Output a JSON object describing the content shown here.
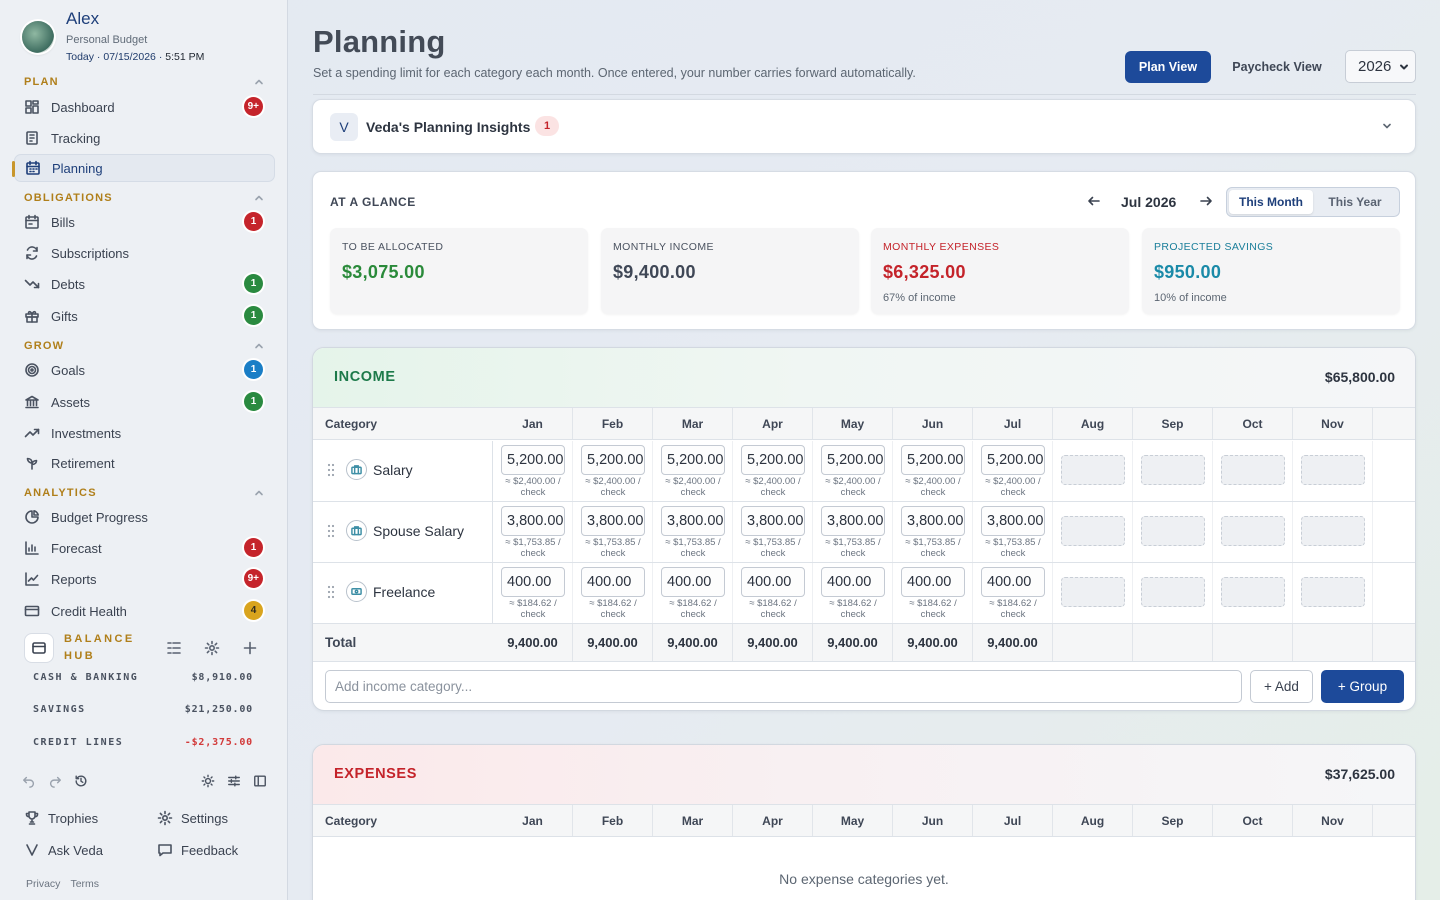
{
  "user": {
    "name": "Alex",
    "subtitle": "Personal Budget",
    "date_prefix": "Today · 07/15/2026 · ",
    "time": "5:51 PM"
  },
  "sidebar": {
    "sections": {
      "plan": "PLAN",
      "obligations": "OBLIGATIONS",
      "grow": "GROW",
      "analytics": "ANALYTICS"
    },
    "items": {
      "dashboard": {
        "label": "Dashboard",
        "badge": "9+"
      },
      "tracking": {
        "label": "Tracking"
      },
      "planning": {
        "label": "Planning"
      },
      "bills": {
        "label": "Bills",
        "badge": "1"
      },
      "subscriptions": {
        "label": "Subscriptions"
      },
      "debts": {
        "label": "Debts",
        "badge": "1"
      },
      "gifts": {
        "label": "Gifts",
        "badge": "1"
      },
      "goals": {
        "label": "Goals",
        "badge": "1"
      },
      "assets": {
        "label": "Assets",
        "badge": "1"
      },
      "investments": {
        "label": "Investments"
      },
      "retirement": {
        "label": "Retirement"
      },
      "budget_progress": {
        "label": "Budget Progress"
      },
      "forecast": {
        "label": "Forecast",
        "badge": "1"
      },
      "reports": {
        "label": "Reports",
        "badge": "9+"
      },
      "credit_health": {
        "label": "Credit Health",
        "badge": "4"
      }
    },
    "balance_hub": {
      "title_line1": "BALANCE",
      "title_line2": "HUB",
      "rows": [
        {
          "label": "CASH & BANKING",
          "value": "$8,910.00"
        },
        {
          "label": "SAVINGS",
          "value": "$21,250.00"
        },
        {
          "label": "CREDIT LINES",
          "value": "-$2,375.00"
        }
      ]
    },
    "footer": {
      "trophies": "Trophies",
      "settings": "Settings",
      "ask_veda": "Ask Veda",
      "feedback": "Feedback",
      "privacy": "Privacy",
      "terms": "Terms"
    }
  },
  "header": {
    "title": "Planning",
    "subtitle": "Set a spending limit for each category each month. Once entered, your number carries forward automatically.",
    "plan_view": "Plan View",
    "paycheck_view": "Paycheck View",
    "year": "2026"
  },
  "insights": {
    "badge": "V",
    "title": "Veda's Planning Insights",
    "count": "1"
  },
  "glance": {
    "title": "AT A GLANCE",
    "month": "Jul 2026",
    "this_month": "This Month",
    "this_year": "This Year",
    "stats": [
      {
        "label": "TO BE ALLOCATED",
        "value": "$3,075.00",
        "sub": ""
      },
      {
        "label": "MONTHLY INCOME",
        "value": "$9,400.00",
        "sub": ""
      },
      {
        "label": "MONTHLY EXPENSES",
        "value": "$6,325.00",
        "sub": "67% of income"
      },
      {
        "label": "PROJECTED SAVINGS",
        "value": "$950.00",
        "sub": "10% of income"
      }
    ],
    "colors": {
      "allocated": "#2a8a3a",
      "income": "#3f4756",
      "expenses": "#c4232a",
      "savings": "#1a8aa8"
    }
  },
  "months": [
    "Jan",
    "Feb",
    "Mar",
    "Apr",
    "May",
    "Jun",
    "Jul",
    "Aug",
    "Sep",
    "Oct",
    "Nov"
  ],
  "income": {
    "title": "INCOME",
    "total": "$65,800.00",
    "category_header": "Category",
    "rows": [
      {
        "name": "Salary",
        "amount": "5,200.00",
        "note_line1": "≈ $2,400.00 /",
        "note_line2": "check"
      },
      {
        "name": "Spouse Salary",
        "amount": "3,800.00",
        "note_line1": "≈ $1,753.85 /",
        "note_line2": "check"
      },
      {
        "name": "Freelance",
        "amount": "400.00",
        "note_line1": "≈ $184.62 /",
        "note_line2": "check"
      }
    ],
    "total_label": "Total",
    "totals": [
      "9,400.00",
      "9,400.00",
      "9,400.00",
      "9,400.00",
      "9,400.00",
      "9,400.00",
      "9,400.00"
    ],
    "add_placeholder": "Add income category...",
    "add_label": "+ Add",
    "group_label": "+ Group"
  },
  "expenses": {
    "title": "EXPENSES",
    "total": "$37,625.00",
    "category_header": "Category",
    "empty": "No expense categories yet."
  }
}
